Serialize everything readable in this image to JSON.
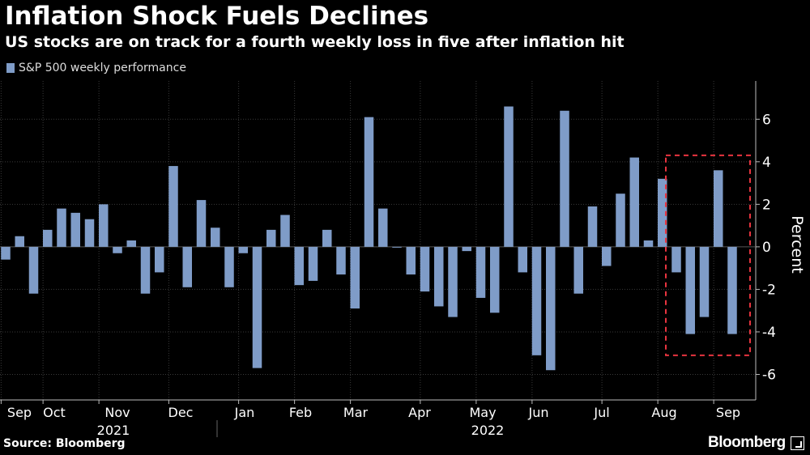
{
  "title": "Inflation Shock Fuels Declines",
  "subtitle": "US stocks are on track for a fourth weekly loss in five after inflation hit",
  "source": "Source: Bloomberg",
  "logo": "Bloomberg",
  "chart_data": {
    "type": "bar",
    "title": "Inflation Shock Fuels Declines",
    "subtitle": "US stocks are on track for a fourth weekly loss in five after inflation hit",
    "legend": [
      "S&P 500 weekly performance"
    ],
    "legend_position": "top-left",
    "ylabel": "Percent",
    "ylim": [
      -7.2,
      7.8
    ],
    "yticks": [
      -6,
      -4,
      -2,
      0,
      2,
      4,
      6
    ],
    "grid": true,
    "bar_color": "#7f9cc8",
    "month_labels": [
      "Sep",
      "Oct",
      "Nov",
      "Dec",
      "Jan",
      "Feb",
      "Mar",
      "Apr",
      "May",
      "Jun",
      "Jul",
      "Aug",
      "Sep"
    ],
    "year_labels": [
      "2021",
      "2022"
    ],
    "highlight_box": {
      "from_index": 49,
      "to_index": 54,
      "color": "#e8343f"
    },
    "values": [
      -0.6,
      0.5,
      -2.2,
      0.8,
      1.8,
      1.6,
      1.3,
      2.0,
      -0.3,
      0.3,
      -2.2,
      -1.2,
      3.8,
      -1.9,
      2.2,
      0.9,
      -1.9,
      -0.3,
      -5.7,
      0.8,
      1.5,
      -1.8,
      -1.6,
      0.8,
      -1.3,
      -2.9,
      6.1,
      1.8,
      0.0,
      -1.3,
      -2.1,
      -2.8,
      -3.3,
      -0.2,
      -2.4,
      -3.1,
      6.6,
      -1.2,
      -5.1,
      -5.8,
      6.4,
      -2.2,
      1.9,
      -0.9,
      2.5,
      4.2,
      0.3,
      3.2,
      -1.2,
      -4.1,
      -3.3,
      3.6,
      -4.1
    ]
  }
}
